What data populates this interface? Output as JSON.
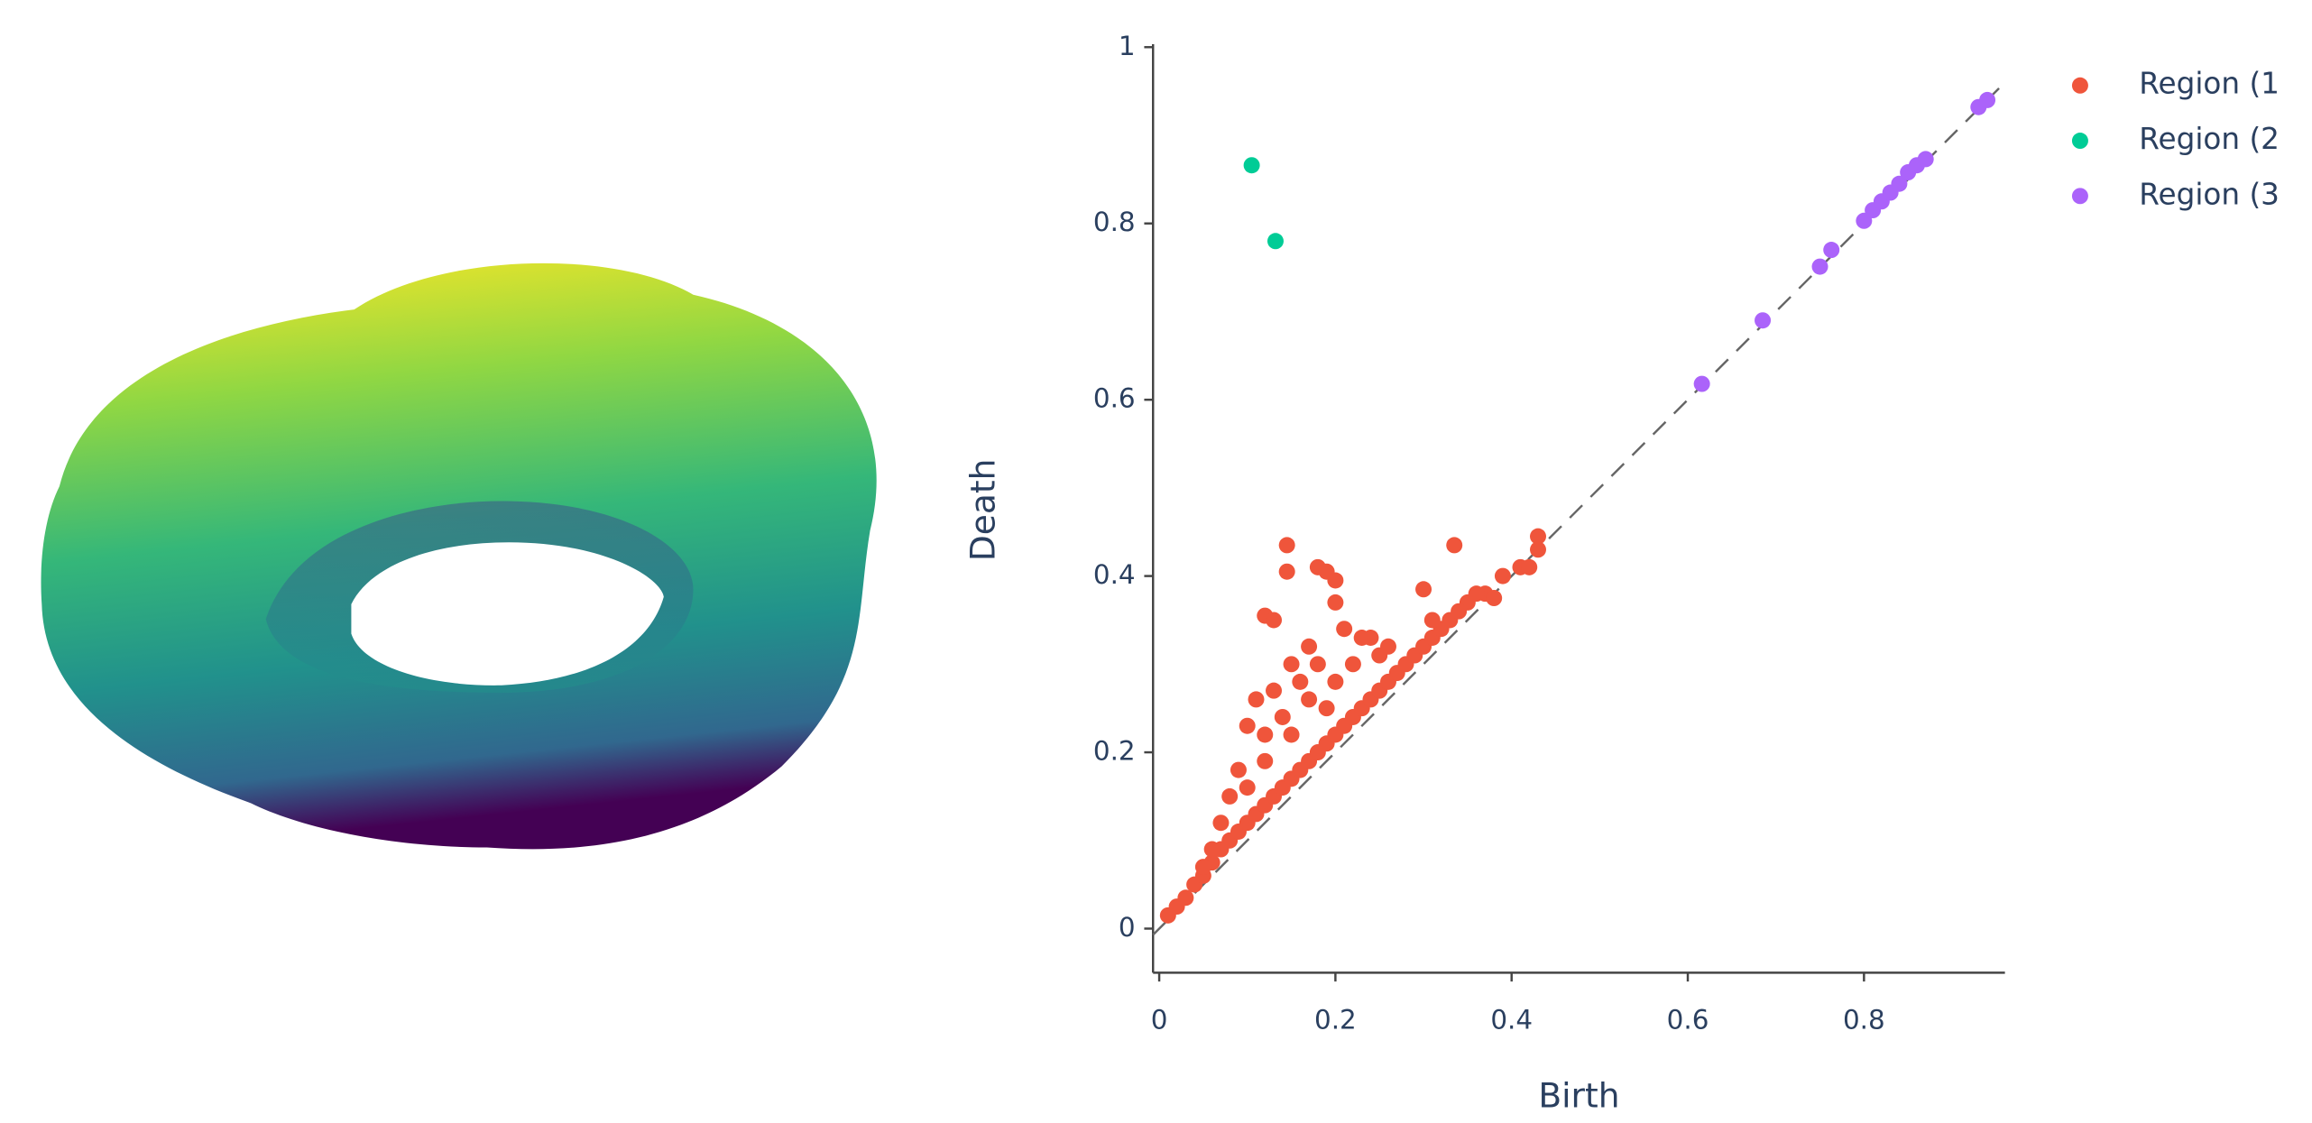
{
  "chart_data": {
    "type": "scatter",
    "xlabel": "Birth",
    "ylabel": "Death",
    "xlim": [
      -0.007,
      0.96
    ],
    "ylim": [
      -0.05,
      1.0
    ],
    "xticks": [
      0,
      0.2,
      0.4,
      0.6,
      0.8
    ],
    "yticks": [
      0,
      0.2,
      0.4,
      0.6,
      0.8,
      1
    ],
    "legend": "top-right",
    "series": [
      {
        "name": "Region (1",
        "color": "#ef553b",
        "x": [
          0.01,
          0.02,
          0.03,
          0.04,
          0.05,
          0.06,
          0.07,
          0.08,
          0.09,
          0.1,
          0.11,
          0.12,
          0.13,
          0.14,
          0.15,
          0.16,
          0.17,
          0.18,
          0.19,
          0.2,
          0.21,
          0.22,
          0.23,
          0.24,
          0.25,
          0.26,
          0.27,
          0.28,
          0.29,
          0.3,
          0.31,
          0.32,
          0.33,
          0.35,
          0.37,
          0.39,
          0.41,
          0.42,
          0.43,
          0.43,
          0.145,
          0.145,
          0.18,
          0.19,
          0.2,
          0.12,
          0.13,
          0.2,
          0.3,
          0.335,
          0.15,
          0.17,
          0.21,
          0.24,
          0.11,
          0.1,
          0.12,
          0.09,
          0.08,
          0.13,
          0.16,
          0.18,
          0.22,
          0.25,
          0.14,
          0.17,
          0.2,
          0.06,
          0.07,
          0.23,
          0.26,
          0.31,
          0.36,
          0.34,
          0.38,
          0.1,
          0.12,
          0.15,
          0.19,
          0.05
        ],
        "values": [
          0.015,
          0.025,
          0.035,
          0.05,
          0.06,
          0.075,
          0.09,
          0.1,
          0.11,
          0.12,
          0.13,
          0.14,
          0.15,
          0.16,
          0.17,
          0.18,
          0.19,
          0.2,
          0.21,
          0.22,
          0.23,
          0.24,
          0.25,
          0.26,
          0.27,
          0.28,
          0.29,
          0.3,
          0.31,
          0.32,
          0.33,
          0.34,
          0.35,
          0.37,
          0.38,
          0.4,
          0.41,
          0.41,
          0.43,
          0.445,
          0.435,
          0.405,
          0.41,
          0.405,
          0.395,
          0.355,
          0.35,
          0.37,
          0.385,
          0.435,
          0.3,
          0.32,
          0.34,
          0.33,
          0.26,
          0.23,
          0.22,
          0.18,
          0.15,
          0.27,
          0.28,
          0.3,
          0.3,
          0.31,
          0.24,
          0.26,
          0.28,
          0.09,
          0.12,
          0.33,
          0.32,
          0.35,
          0.38,
          0.36,
          0.375,
          0.16,
          0.19,
          0.22,
          0.25,
          0.07
        ]
      },
      {
        "name": "Region (2",
        "color": "#00cc96",
        "x": [
          0.105,
          0.132
        ],
        "values": [
          0.866,
          0.78
        ]
      },
      {
        "name": "Region (3",
        "color": "#ab63fa",
        "x": [
          0.616,
          0.685,
          0.75,
          0.763,
          0.8,
          0.81,
          0.82,
          0.83,
          0.84,
          0.85,
          0.86,
          0.87,
          0.93,
          0.94
        ],
        "values": [
          0.618,
          0.69,
          0.751,
          0.77,
          0.803,
          0.815,
          0.825,
          0.835,
          0.845,
          0.858,
          0.866,
          0.873,
          0.932,
          0.94
        ]
      }
    ]
  }
}
